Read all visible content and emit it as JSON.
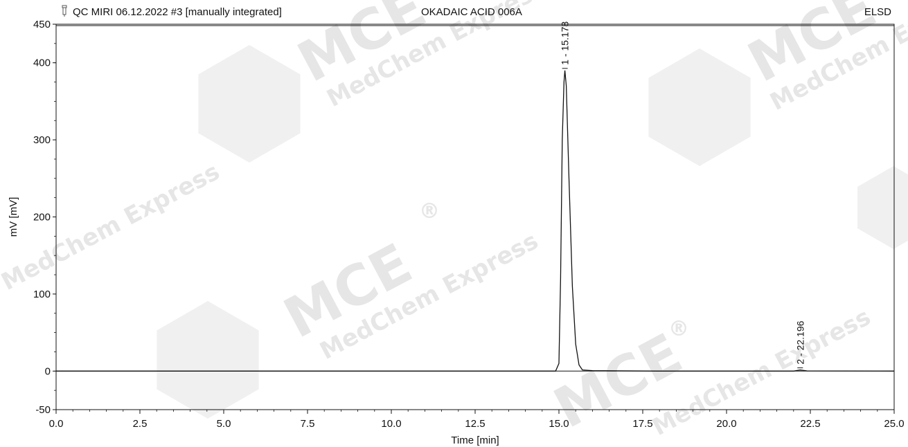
{
  "header": {
    "sample_info": "QC MIRI  06.12.2022 #3 [manually integrated]",
    "sample_name": "OKADAIC ACID 006A",
    "detector": "ELSD"
  },
  "watermark": {
    "brand": "MCE",
    "company": "MedChem Express",
    "registered": "®",
    "color": "#e6e6e6"
  },
  "chart_data": {
    "type": "line",
    "title": "",
    "xlabel": "Time [min]",
    "ylabel": "mV [mV]",
    "xlim": [
      0.0,
      25.0
    ],
    "ylim": [
      -50,
      450
    ],
    "x_ticks": [
      "0.0",
      "2.5",
      "5.0",
      "7.5",
      "10.0",
      "12.5",
      "15.0",
      "17.5",
      "20.0",
      "22.5",
      "25.0"
    ],
    "y_ticks": [
      "-50",
      "0",
      "100",
      "200",
      "300",
      "400",
      "450"
    ],
    "grid": false,
    "series": [
      {
        "x": [
          0.0,
          14.9,
          15.0,
          15.05,
          15.1,
          15.15,
          15.178,
          15.22,
          15.3,
          15.4,
          15.5,
          15.6,
          15.7,
          16.0,
          18.0,
          20.0,
          22.0,
          22.196,
          22.4,
          25.0
        ],
        "y": [
          0.0,
          0.0,
          10.0,
          120.0,
          300.0,
          375.0,
          390.0,
          370.0,
          250.0,
          110.0,
          35.0,
          8.0,
          1.5,
          0.5,
          0.0,
          0.0,
          0.0,
          1.5,
          0.3,
          0.0
        ],
        "color": "#111111"
      }
    ],
    "peaks": [
      {
        "label": "1 - 15.178",
        "x": 15.178,
        "y": 390
      },
      {
        "label": "2 - 22.196",
        "x": 22.196,
        "y": 1.5
      }
    ]
  }
}
